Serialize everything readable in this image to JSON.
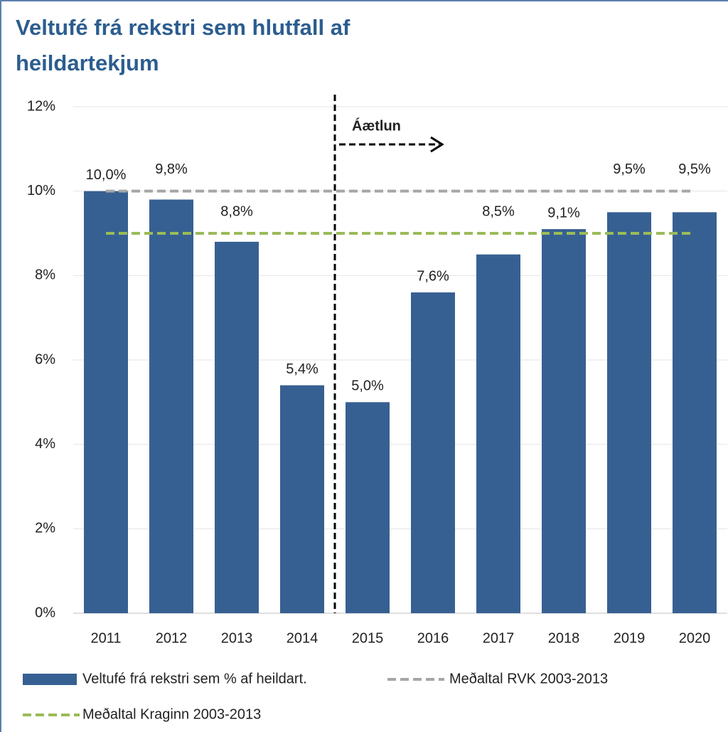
{
  "chart_data": {
    "type": "bar",
    "title": "Veltufé frá rekstri sem hlutfall af heildartekjum",
    "categories": [
      "2011",
      "2012",
      "2013",
      "2014",
      "2015",
      "2016",
      "2017",
      "2018",
      "2019",
      "2020"
    ],
    "series": [
      {
        "name": "Veltufé frá rekstri sem % af heildart.",
        "color": "#376092",
        "values": [
          10.0,
          9.8,
          8.8,
          5.4,
          5.0,
          7.6,
          8.5,
          9.1,
          9.5,
          9.5
        ],
        "value_labels": [
          "10,0%",
          "9,8%",
          "8,8%",
          "5,4%",
          "5,0%",
          "7,6%",
          "8,5%",
          "9,1%",
          "9,5%",
          "9,5%"
        ]
      }
    ],
    "reference_lines": [
      {
        "name": "Meðaltal RVK 2003-2013",
        "value": 10,
        "color": "#a6a6a6"
      },
      {
        "name": "Meðaltal Kraginn 2003-2013",
        "value": 9,
        "color": "#9bbb59"
      }
    ],
    "annotation": "Áætlun",
    "ylim": [
      0,
      12
    ],
    "yticks": [
      {
        "value": 0,
        "label": "0%"
      },
      {
        "value": 2,
        "label": "2%"
      },
      {
        "value": 4,
        "label": "4%"
      },
      {
        "value": 6,
        "label": "6%"
      },
      {
        "value": 8,
        "label": "8%"
      },
      {
        "value": 10,
        "label": "10%"
      },
      {
        "value": 12,
        "label": "12%"
      }
    ],
    "grid": true
  }
}
